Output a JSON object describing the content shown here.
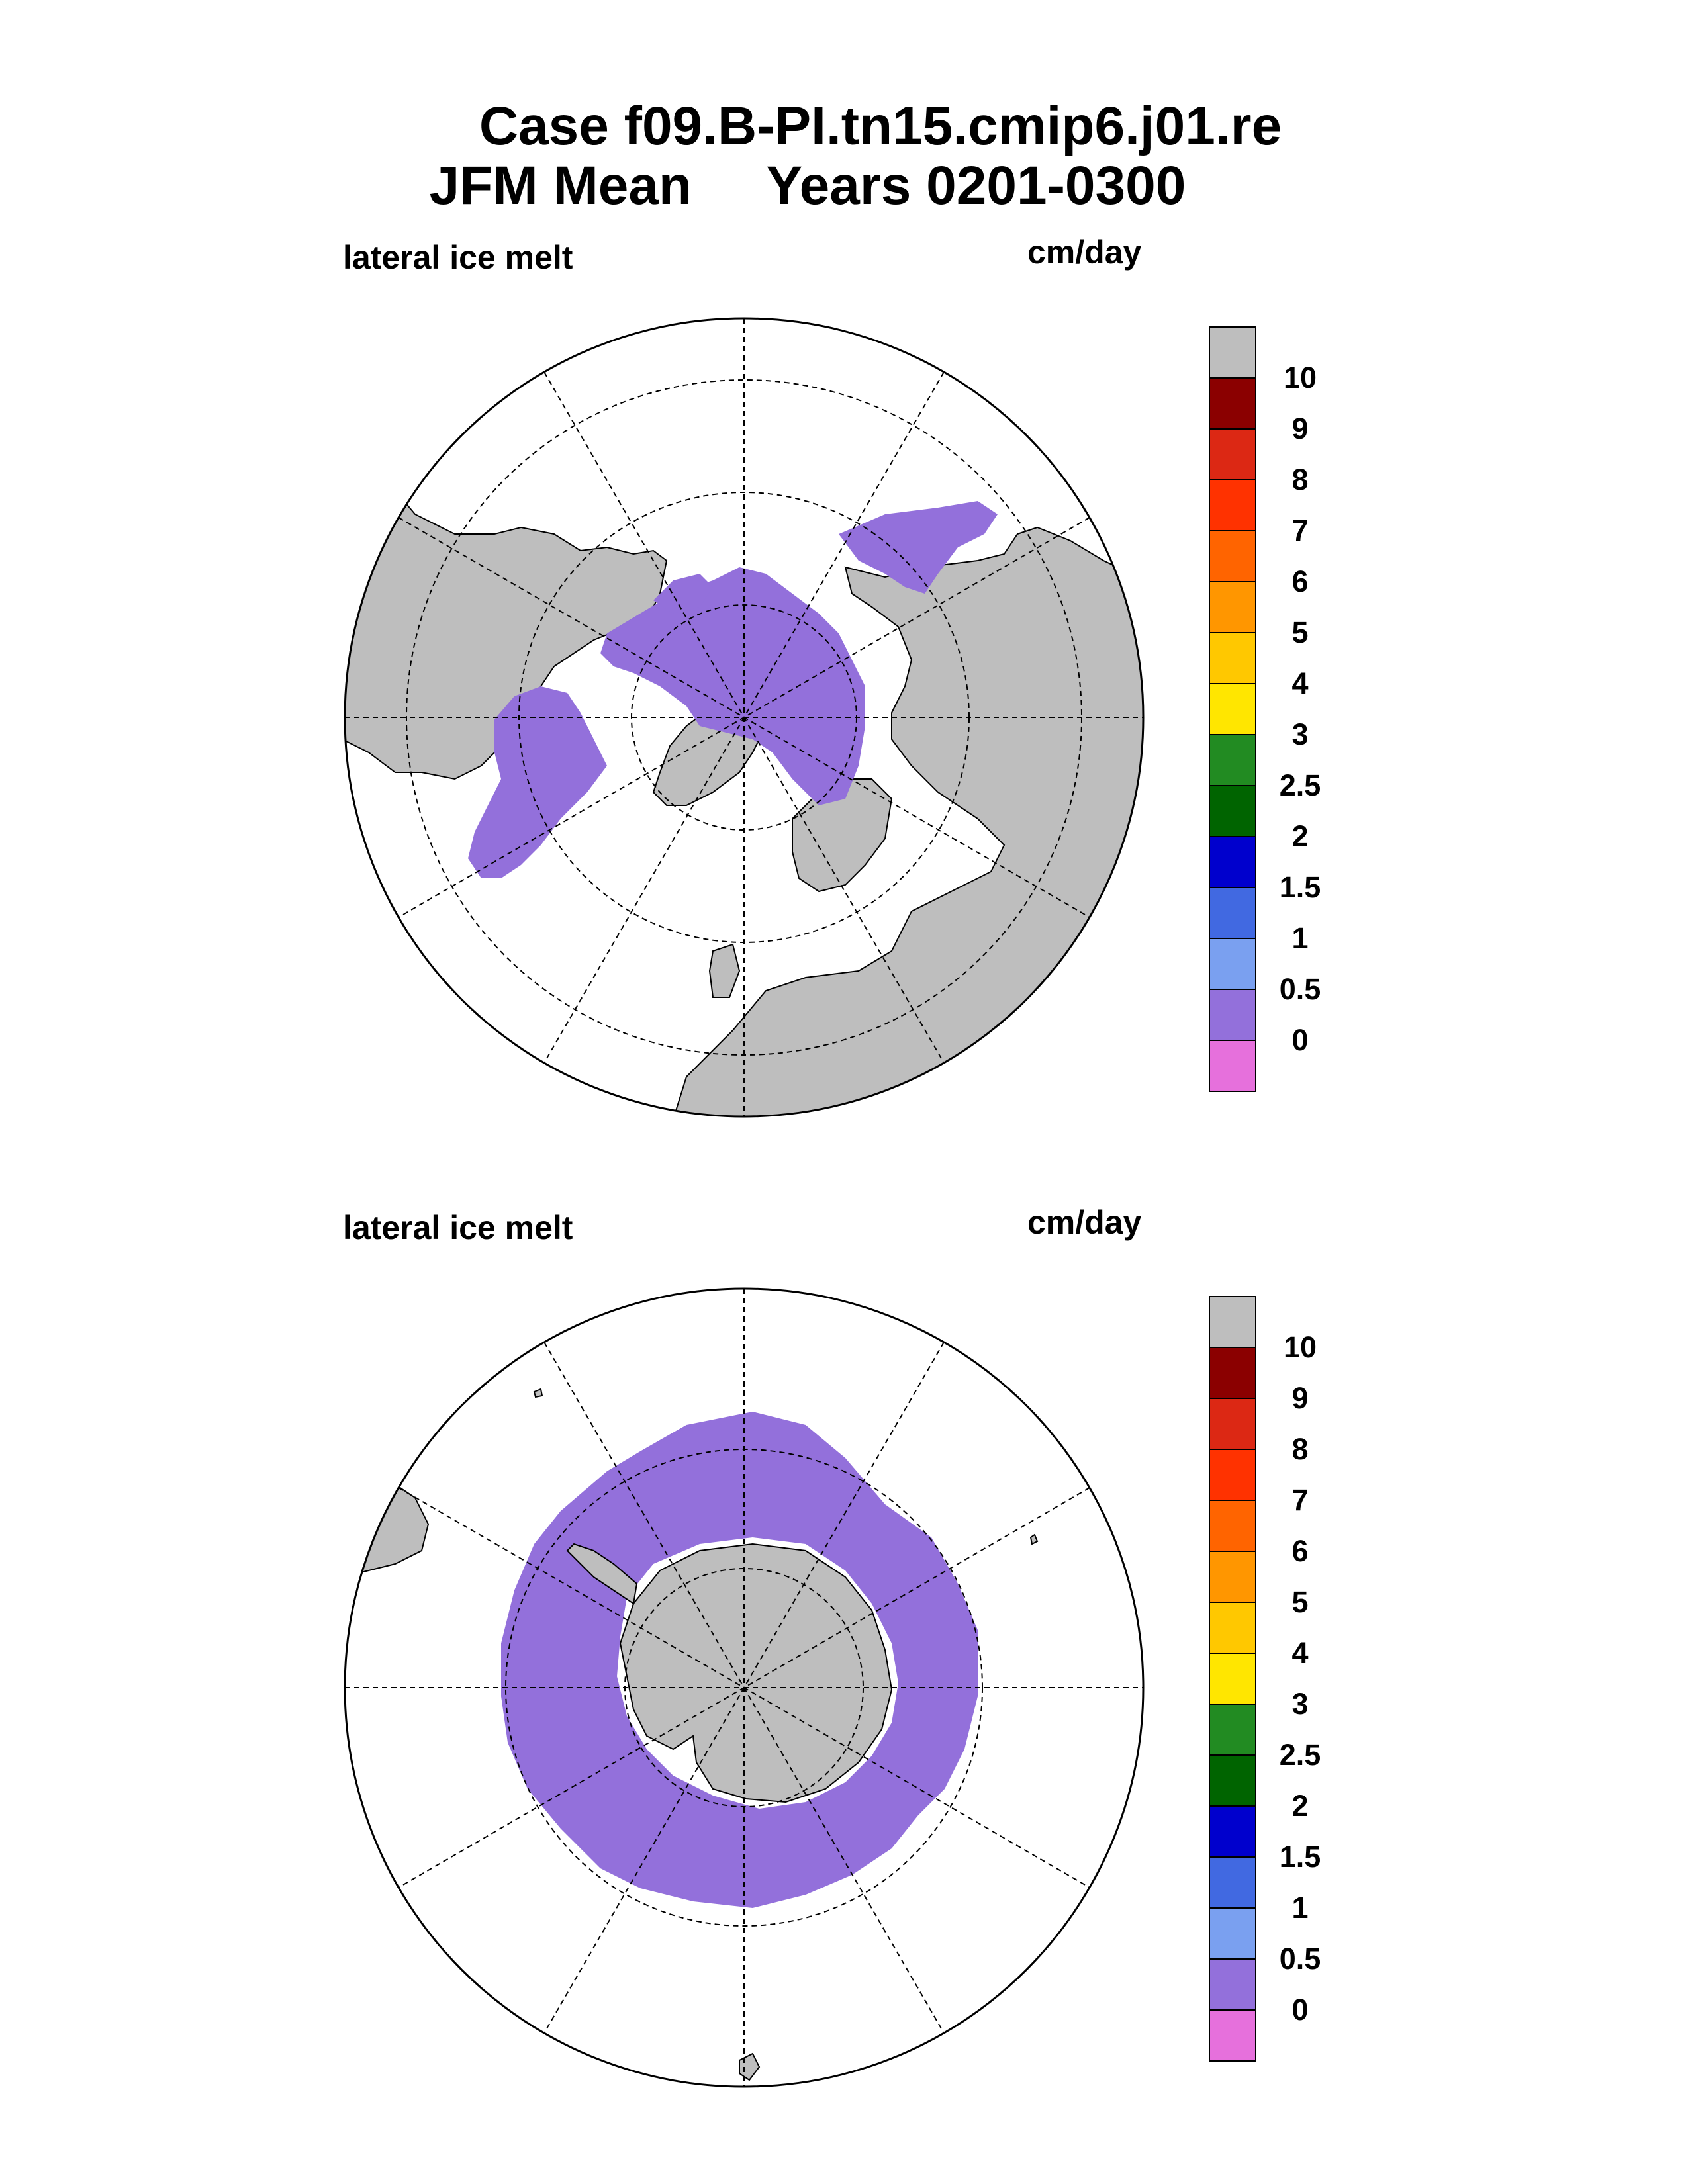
{
  "header": {
    "line1": "Case f09.B-PI.tn15.cmip6.j01.re",
    "line2": "JFM Mean     Years 0201-0300"
  },
  "panels": [
    {
      "id": "north",
      "label_left": "lateral ice melt",
      "label_right": "cm/day",
      "hemisphere": "Arctic / Northern Hemisphere polar stereographic"
    },
    {
      "id": "south",
      "label_left": "lateral ice melt",
      "label_right": "cm/day",
      "hemisphere": "Antarctic / Southern Hemisphere polar stereographic"
    }
  ],
  "colorbar": {
    "colors": [
      "#BEBEBE",
      "#8B0000",
      "#DC2814",
      "#FF3200",
      "#FF6400",
      "#FF9600",
      "#FFC800",
      "#FFE600",
      "#228B22",
      "#006400",
      "#0000CD",
      "#4169E1",
      "#7AA0F0",
      "#9370DB",
      "#E670DC"
    ],
    "tick_labels": [
      "10",
      "9",
      "8",
      "7",
      "6",
      "5",
      "4",
      "3",
      "2.5",
      "2",
      "1.5",
      "1",
      "0.5",
      "0"
    ]
  },
  "colors": {
    "land": "#BEBEBE",
    "ice_melt_fill": "#9370DB",
    "ocean": "#FFFFFF"
  }
}
